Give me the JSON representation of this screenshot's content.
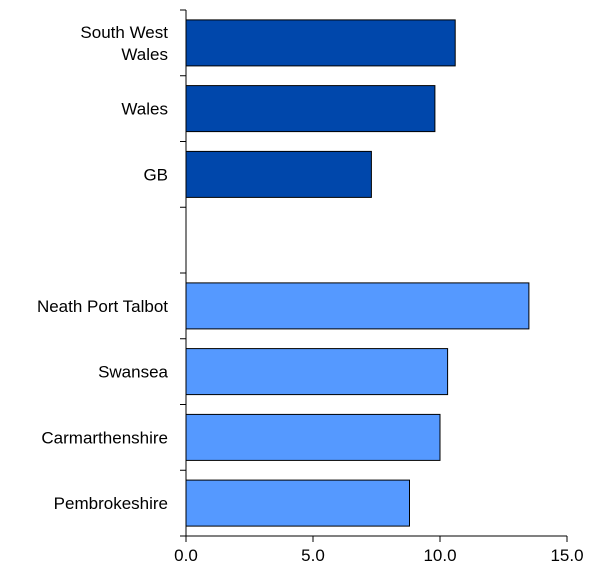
{
  "chart_data": {
    "type": "bar",
    "orientation": "horizontal",
    "title": "",
    "xlabel": "",
    "ylabel": "",
    "xlim": [
      0,
      15
    ],
    "x_ticks": [
      "0.0",
      "5.0",
      "10.0",
      "15.0"
    ],
    "grid": false,
    "legend": "none",
    "colors": {
      "region": "#0047AB",
      "local": "#5599FF",
      "outline": "#000000"
    },
    "groups": [
      {
        "name": "",
        "color": "#0047AB",
        "categories": [
          [
            "South West",
            "Wales"
          ],
          [
            "Wales"
          ],
          [
            "GB"
          ]
        ],
        "values": [
          10.6,
          9.8,
          7.3
        ]
      },
      {
        "name": "",
        "color": "#5599FF",
        "categories": [
          [
            "Neath Port Talbot"
          ],
          [
            "Swansea"
          ],
          [
            "Carmarthenshire"
          ],
          [
            "Pembrokeshire"
          ]
        ],
        "values": [
          13.5,
          10.3,
          10.0,
          8.8
        ]
      }
    ]
  }
}
